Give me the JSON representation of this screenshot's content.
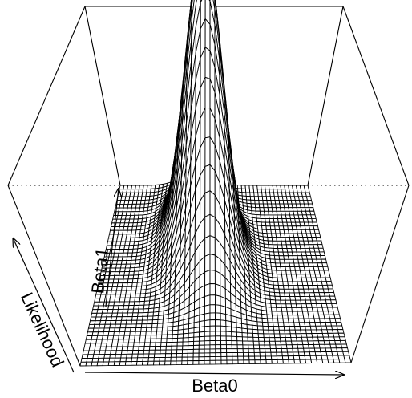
{
  "chart_data": {
    "type": "surface3d",
    "xlabel": "Beta0",
    "ylabel": "Beta1",
    "zlabel": "Likelihood",
    "box": "full",
    "surface": {
      "function": "bivariate-normal-density",
      "peak_height_fraction": 0.87,
      "x_center_fraction": 0.45,
      "y_center_fraction": 0.62,
      "x_spread": 0.085,
      "y_spread": 0.15,
      "correlation": -0.2,
      "grid_lines_x": 49,
      "grid_lines_y": 49
    },
    "colors": {
      "line": "#000000",
      "surface_fill": "#ffffff",
      "background": "#ffffff"
    }
  }
}
